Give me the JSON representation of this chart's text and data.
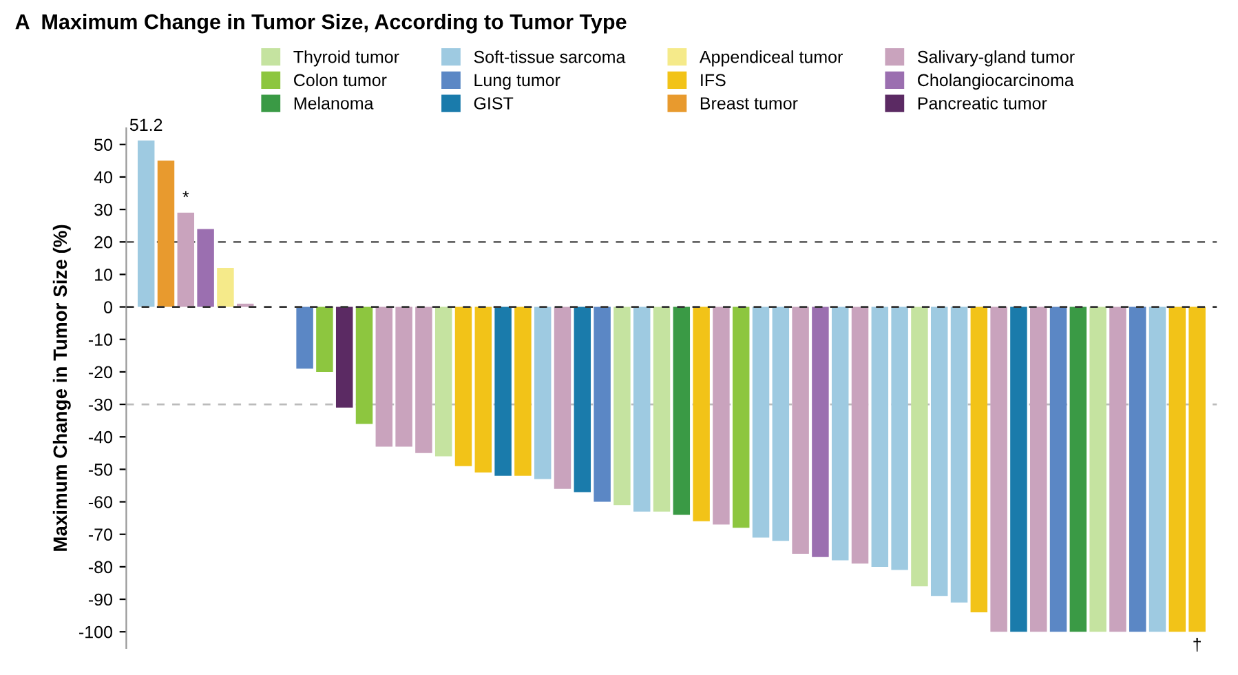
{
  "chart_data": {
    "type": "bar",
    "title": "A  Maximum Change in Tumor Size, According to Tumor Type",
    "ylabel": "Maximum Change in Tumor Size (%)",
    "categories": [
      null,
      null,
      null,
      null,
      null,
      null,
      null,
      null,
      null,
      null,
      null,
      null,
      null,
      null,
      null,
      null,
      null,
      null,
      null,
      null,
      null,
      null,
      null,
      null,
      null,
      null,
      null,
      null,
      null,
      null,
      null,
      null,
      null,
      null,
      null,
      null,
      null,
      null,
      null,
      null,
      null,
      null,
      null,
      null,
      null,
      null,
      null,
      null,
      null,
      null,
      null,
      null,
      null,
      null
    ],
    "series": [
      {
        "name": "Thyroid tumor",
        "color": "#c5e3a0",
        "values": [
          null,
          null,
          null,
          null,
          null,
          null,
          null,
          null,
          null,
          null,
          null,
          null,
          null,
          null,
          null,
          -46,
          null,
          null,
          null,
          null,
          null,
          null,
          null,
          null,
          -61,
          null,
          -63,
          null,
          null,
          null,
          null,
          null,
          null,
          null,
          null,
          null,
          null,
          null,
          null,
          -86,
          null,
          null,
          null,
          null,
          null,
          null,
          null,
          null,
          -100,
          null,
          null,
          null,
          null,
          null
        ]
      },
      {
        "name": "Colon tumor",
        "color": "#8dc63f",
        "values": [
          null,
          null,
          null,
          null,
          null,
          null,
          null,
          null,
          null,
          -20,
          null,
          -36,
          null,
          null,
          null,
          null,
          null,
          null,
          null,
          null,
          null,
          null,
          null,
          null,
          null,
          null,
          null,
          null,
          null,
          null,
          -68,
          null,
          null,
          null,
          null,
          null,
          null,
          null,
          null,
          null,
          null,
          null,
          null,
          null,
          null,
          null,
          null,
          null,
          null,
          null,
          null,
          null,
          null,
          null
        ]
      },
      {
        "name": "Melanoma",
        "color": "#3a9a45",
        "values": [
          null,
          null,
          null,
          null,
          null,
          null,
          null,
          null,
          null,
          null,
          null,
          null,
          null,
          null,
          null,
          null,
          null,
          null,
          null,
          null,
          null,
          null,
          null,
          null,
          null,
          null,
          null,
          -64,
          null,
          null,
          null,
          null,
          null,
          null,
          null,
          null,
          null,
          null,
          null,
          null,
          null,
          null,
          null,
          null,
          null,
          null,
          null,
          -100,
          null,
          null,
          null,
          null,
          null,
          null
        ]
      },
      {
        "name": "Soft-tissue sarcoma",
        "color": "#9ecae1",
        "values": [
          51.2,
          null,
          null,
          null,
          null,
          null,
          null,
          null,
          null,
          null,
          null,
          null,
          null,
          null,
          null,
          null,
          null,
          null,
          null,
          null,
          -53,
          null,
          null,
          null,
          null,
          -63,
          null,
          null,
          null,
          null,
          null,
          -71,
          -72,
          null,
          null,
          -78,
          null,
          -80,
          -81,
          null,
          -89,
          -91,
          null,
          null,
          null,
          null,
          null,
          null,
          null,
          null,
          null,
          -100,
          null,
          null
        ],
        "value_labels": [
          "51.2",
          null,
          null,
          null,
          null,
          null,
          null,
          null,
          null,
          null,
          null,
          null,
          null,
          null,
          null,
          null,
          null,
          null,
          null,
          null,
          null,
          null,
          null,
          null,
          null,
          null,
          null,
          null,
          null,
          null,
          null,
          null,
          null,
          null,
          null,
          null,
          null,
          null,
          null,
          null,
          null,
          null,
          null,
          null,
          null,
          null,
          null,
          null,
          null,
          null,
          null,
          null,
          null,
          null
        ]
      },
      {
        "name": "Lung tumor",
        "color": "#5b87c5",
        "values": [
          null,
          null,
          null,
          null,
          null,
          null,
          null,
          null,
          -19,
          null,
          null,
          null,
          null,
          null,
          null,
          null,
          null,
          null,
          null,
          null,
          null,
          null,
          null,
          -60,
          null,
          null,
          null,
          null,
          null,
          null,
          null,
          null,
          null,
          null,
          null,
          null,
          null,
          null,
          null,
          null,
          null,
          null,
          null,
          null,
          null,
          null,
          -100,
          null,
          null,
          null,
          -100,
          null,
          null,
          null
        ]
      },
      {
        "name": "GIST",
        "color": "#1a7bab",
        "values": [
          null,
          null,
          null,
          null,
          null,
          null,
          null,
          null,
          null,
          null,
          null,
          null,
          null,
          null,
          null,
          null,
          null,
          null,
          -52,
          null,
          null,
          null,
          -57,
          null,
          null,
          null,
          null,
          null,
          null,
          null,
          null,
          null,
          null,
          null,
          null,
          null,
          null,
          null,
          null,
          null,
          null,
          null,
          null,
          null,
          -100,
          null,
          null,
          null,
          null,
          null,
          null,
          null,
          null,
          null
        ]
      },
      {
        "name": "Appendiceal tumor",
        "color": "#f5ea8a",
        "values": [
          null,
          null,
          null,
          null,
          12,
          null,
          null,
          null,
          null,
          null,
          null,
          null,
          null,
          null,
          null,
          null,
          null,
          null,
          null,
          null,
          null,
          null,
          null,
          null,
          null,
          null,
          null,
          null,
          null,
          null,
          null,
          null,
          null,
          null,
          null,
          null,
          null,
          null,
          null,
          null,
          null,
          null,
          null,
          null,
          null,
          null,
          null,
          null,
          null,
          null,
          null,
          null,
          null,
          null
        ]
      },
      {
        "name": "IFS",
        "color": "#f2c318",
        "values": [
          null,
          null,
          null,
          null,
          null,
          null,
          null,
          null,
          null,
          null,
          null,
          null,
          null,
          null,
          null,
          null,
          -49,
          -51,
          null,
          -52,
          null,
          null,
          null,
          null,
          null,
          null,
          null,
          null,
          -66,
          null,
          null,
          null,
          null,
          null,
          null,
          null,
          null,
          null,
          null,
          null,
          null,
          null,
          -94,
          null,
          null,
          null,
          null,
          null,
          null,
          null,
          null,
          null,
          -100,
          -100
        ],
        "value_labels": [
          null,
          null,
          null,
          null,
          null,
          null,
          null,
          null,
          null,
          null,
          null,
          null,
          null,
          null,
          null,
          null,
          null,
          null,
          null,
          null,
          null,
          null,
          null,
          null,
          null,
          null,
          null,
          null,
          null,
          null,
          null,
          null,
          null,
          null,
          null,
          null,
          null,
          null,
          null,
          null,
          null,
          null,
          null,
          null,
          null,
          null,
          null,
          null,
          null,
          null,
          null,
          null,
          null,
          "†"
        ]
      },
      {
        "name": "Breast tumor",
        "color": "#e89a2e",
        "values": [
          null,
          45,
          null,
          null,
          null,
          null,
          null,
          null,
          null,
          null,
          null,
          null,
          null,
          null,
          null,
          null,
          null,
          null,
          null,
          null,
          null,
          null,
          null,
          null,
          null,
          null,
          null,
          null,
          null,
          null,
          null,
          null,
          null,
          null,
          null,
          null,
          null,
          null,
          null,
          null,
          null,
          null,
          null,
          null,
          null,
          null,
          null,
          null,
          null,
          null,
          null,
          null,
          null,
          null
        ]
      },
      {
        "name": "Salivary-gland tumor",
        "color": "#c9a3bd",
        "values": [
          null,
          null,
          29,
          null,
          null,
          1,
          null,
          null,
          null,
          null,
          null,
          null,
          -43,
          -43,
          -45,
          null,
          null,
          null,
          null,
          null,
          null,
          -56,
          null,
          null,
          null,
          null,
          null,
          null,
          null,
          -67,
          null,
          null,
          null,
          -76,
          null,
          null,
          -79,
          null,
          null,
          null,
          null,
          null,
          null,
          -100,
          null,
          -100,
          null,
          null,
          null,
          -100,
          null,
          null,
          null,
          null
        ],
        "value_labels": [
          null,
          null,
          "*",
          null,
          null,
          null,
          null,
          null,
          null,
          null,
          null,
          null,
          null,
          null,
          null,
          null,
          null,
          null,
          null,
          null,
          null,
          null,
          null,
          null,
          null,
          null,
          null,
          null,
          null,
          null,
          null,
          null,
          null,
          null,
          null,
          null,
          null,
          null,
          null,
          null,
          null,
          null,
          null,
          null,
          null,
          null,
          null,
          null,
          null,
          null,
          null,
          null,
          null,
          null
        ]
      },
      {
        "name": "Cholangiocarcinoma",
        "color": "#9b6fb0",
        "values": [
          null,
          null,
          null,
          24,
          null,
          null,
          null,
          null,
          null,
          null,
          null,
          null,
          null,
          null,
          null,
          null,
          null,
          null,
          null,
          null,
          null,
          null,
          null,
          null,
          null,
          null,
          null,
          null,
          null,
          null,
          null,
          null,
          null,
          null,
          -77,
          null,
          null,
          null,
          null,
          null,
          null,
          null,
          null,
          null,
          null,
          null,
          null,
          null,
          null,
          null,
          null,
          null,
          null,
          null
        ]
      },
      {
        "name": "Pancreatic tumor",
        "color": "#5b2a63",
        "values": [
          null,
          null,
          null,
          null,
          null,
          null,
          null,
          null,
          null,
          null,
          -31,
          null,
          null,
          null,
          null,
          null,
          null,
          null,
          null,
          null,
          null,
          null,
          null,
          null,
          null,
          null,
          null,
          null,
          null,
          null,
          null,
          null,
          null,
          null,
          null,
          null,
          null,
          null,
          null,
          null,
          null,
          null,
          null,
          null,
          null,
          null,
          null,
          null,
          null,
          null,
          null,
          null,
          null,
          null
        ]
      }
    ],
    "ylim": [
      -105,
      55
    ],
    "yticks": [
      50,
      40,
      30,
      20,
      10,
      0,
      -10,
      -20,
      -30,
      -40,
      -50,
      -60,
      -70,
      -80,
      -90,
      -100
    ],
    "ref_lines": [
      {
        "axis": "y",
        "value": 20,
        "line_style": "dashed",
        "color": "#666666"
      },
      {
        "axis": "y",
        "value": 0,
        "line_style": "dashed",
        "color": "#333333"
      },
      {
        "axis": "y",
        "value": -30,
        "line_style": "dashed",
        "color": "#bbbbbb"
      }
    ],
    "legend": "top",
    "grid": false
  }
}
